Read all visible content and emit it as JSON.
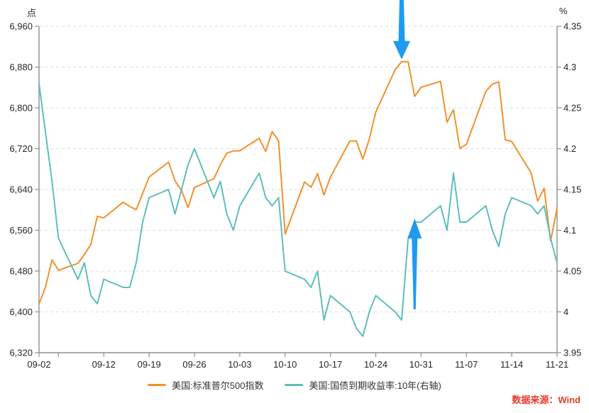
{
  "left_unit": "点",
  "right_unit": "%",
  "source": {
    "text": "数据来源：Wind",
    "color": "#E8392C"
  },
  "legend": {
    "items": [
      {
        "label": "美国:标准普尔500指数",
        "color": "#F0912D"
      },
      {
        "label": "美国:国债到期收益率:10年(右轴)",
        "color": "#5CBFBB"
      }
    ]
  },
  "chart_data": {
    "type": "line",
    "title": "",
    "grid": "horizontal-dashed",
    "legend_position": "bottom-center",
    "left_axis": {
      "unit": "点",
      "min": 6320,
      "max": 6960,
      "tick_step": 80,
      "tick_labels": [
        "6,960",
        "6,880",
        "6,800",
        "6,720",
        "6,640",
        "6,560",
        "6,480",
        "6,400",
        "6,320"
      ]
    },
    "right_axis": {
      "unit": "%",
      "min": 3.95,
      "max": 4.35,
      "tick_step": 0.05,
      "tick_labels": [
        "4.35",
        "4.3",
        "4.25",
        "4.2",
        "4.15",
        "4.1",
        "4.05",
        "4",
        "3.95"
      ]
    },
    "x_axis": {
      "start": "09-02",
      "end": "11-21",
      "tick_labels": [
        "09-02",
        "09-12",
        "09-19",
        "09-26",
        "10-03",
        "10-10",
        "10-17",
        "10-24",
        "10-31",
        "11-07",
        "11-14",
        "11-21"
      ],
      "unlabeled_ticks": [
        "09-05"
      ]
    },
    "dates": [
      "09-02",
      "09-03",
      "09-04",
      "09-05",
      "09-08",
      "09-09",
      "09-10",
      "09-11",
      "09-12",
      "09-15",
      "09-16",
      "09-17",
      "09-18",
      "09-19",
      "09-22",
      "09-23",
      "09-24",
      "09-25",
      "09-26",
      "09-29",
      "09-30",
      "10-01",
      "10-02",
      "10-03",
      "10-06",
      "10-07",
      "10-08",
      "10-09",
      "10-10",
      "10-13",
      "10-14",
      "10-15",
      "10-16",
      "10-17",
      "10-20",
      "10-21",
      "10-22",
      "10-23",
      "10-24",
      "10-27",
      "10-28",
      "10-29",
      "10-30",
      "10-31",
      "11-03",
      "11-04",
      "11-05",
      "11-06",
      "11-07",
      "11-10",
      "11-11",
      "11-12",
      "11-13",
      "11-14",
      "11-17",
      "11-18",
      "11-19",
      "11-20",
      "11-21"
    ],
    "series": [
      {
        "name": "美国:标准普尔500指数",
        "axis": "left",
        "color": "#F0912D",
        "values": [
          6415.54,
          6448.26,
          6502.08,
          6481.5,
          6495.15,
          6512.61,
          6532.04,
          6587.47,
          6584.29,
          6615.28,
          6606.76,
          6600.35,
          6631.96,
          6664.36,
          6693.75,
          6656.92,
          6637.97,
          6604.72,
          6643.7,
          6661.21,
          6688.46,
          6711.2,
          6715.35,
          6715.79,
          6740.28,
          6714.59,
          6753.72,
          6735.11,
          6552.51,
          6654.72,
          6644.31,
          6671.06,
          6629.07,
          6664.01,
          6735.13,
          6735.35,
          6699.4,
          6738.44,
          6791.69,
          6875.16,
          6890.89,
          6890.59,
          6822.34,
          6840.2,
          6851.97,
          6771.55,
          6796.29,
          6720.32,
          6728.8,
          6832.43,
          6846.61,
          6850.92,
          6737.49,
          6734.11,
          6672.41,
          6617.32,
          6642.16,
          6538.76,
          6602.99
        ]
      },
      {
        "name": "美国:国债到期收益率:10年(右轴)",
        "axis": "right",
        "color": "#5CBFBB",
        "values": [
          4.28,
          4.22,
          4.16,
          4.09,
          4.04,
          4.06,
          4.02,
          4.01,
          4.04,
          4.03,
          4.03,
          4.06,
          4.11,
          4.14,
          4.15,
          4.12,
          4.15,
          4.18,
          4.2,
          4.14,
          4.16,
          4.12,
          4.1,
          4.13,
          4.17,
          4.14,
          4.13,
          4.14,
          4.05,
          4.04,
          4.03,
          4.05,
          3.99,
          4.02,
          4.0,
          3.98,
          3.97,
          4.0,
          4.02,
          4.0,
          3.99,
          4.09,
          4.11,
          4.11,
          4.13,
          4.1,
          4.17,
          4.11,
          4.11,
          4.13,
          4.1,
          4.08,
          4.12,
          4.14,
          4.13,
          4.12,
          4.13,
          4.09,
          4.06
        ]
      }
    ],
    "annotations": [
      {
        "type": "arrow-down",
        "color": "#1E9BF0",
        "date": "10-28",
        "series": "美国:标准普尔500指数"
      },
      {
        "type": "arrow-up",
        "color": "#1E9BF0",
        "date": "10-30",
        "series": "美国:国债到期收益率:10年(右轴)"
      }
    ]
  }
}
